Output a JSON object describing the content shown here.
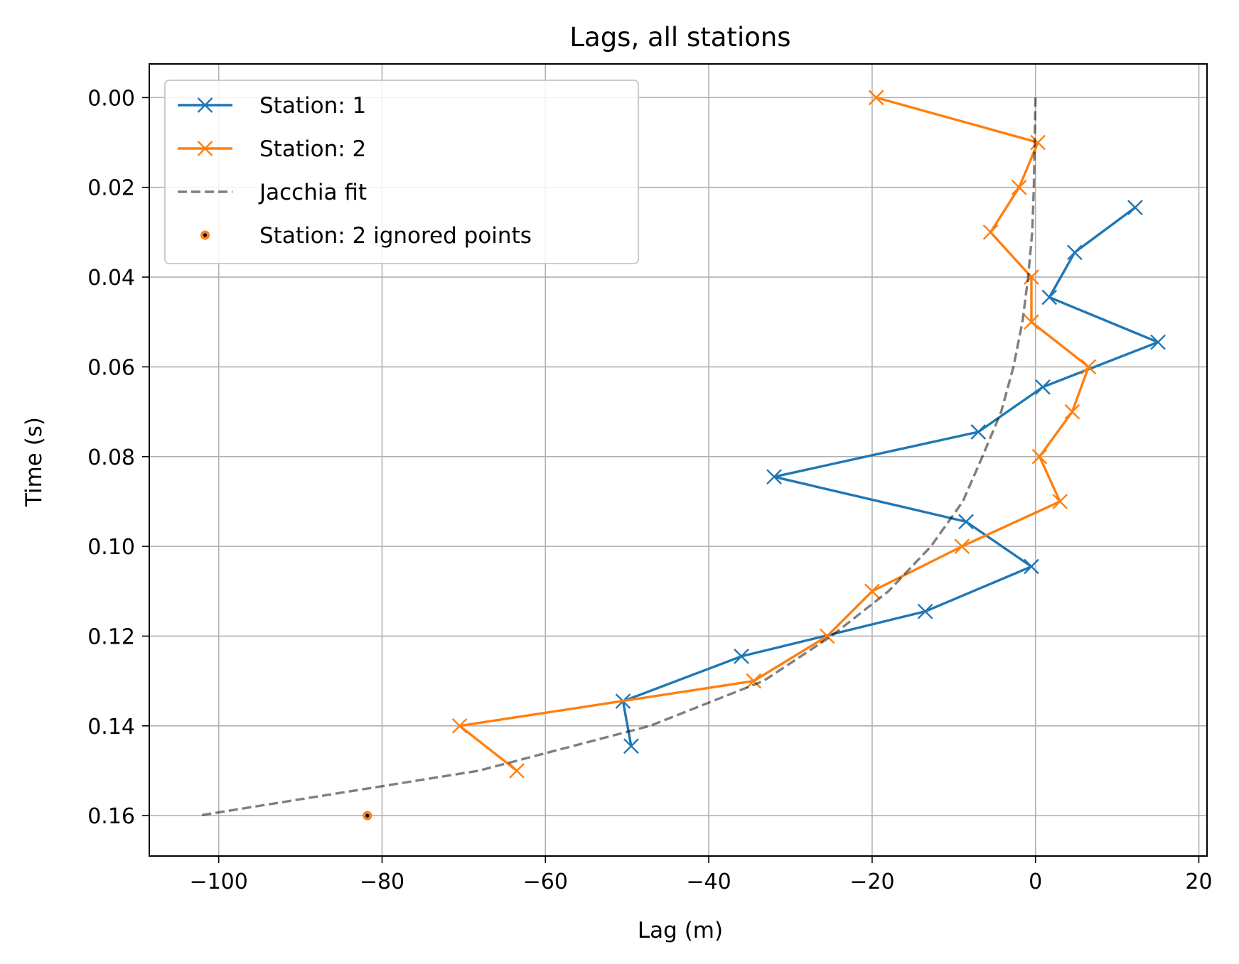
{
  "chart_data": {
    "type": "line",
    "title": "Lags, all stations",
    "xlabel": "Lag (m)",
    "ylabel": "Time (s)",
    "xlim": [
      -108.5,
      21
    ],
    "ylim": [
      0.169,
      -0.0075
    ],
    "y_inverted": true,
    "grid": true,
    "legend_position": "upper-left",
    "x_ticks": [
      -100,
      -80,
      -60,
      -40,
      -20,
      0,
      20
    ],
    "x_tick_labels": [
      "−100",
      "−80",
      "−60",
      "−40",
      "−20",
      "0",
      "20"
    ],
    "y_ticks": [
      0.0,
      0.02,
      0.04,
      0.06,
      0.08,
      0.1,
      0.12,
      0.14,
      0.16
    ],
    "y_tick_labels": [
      "0.00",
      "0.02",
      "0.04",
      "0.06",
      "0.08",
      "0.10",
      "0.12",
      "0.14",
      "0.16"
    ],
    "series": [
      {
        "name": "Station: 1",
        "style": "line-x",
        "color": "#1f77b4",
        "points": [
          [
            12.2,
            0.0245
          ],
          [
            4.8,
            0.0345
          ],
          [
            1.7,
            0.0445
          ],
          [
            15.0,
            0.0545
          ],
          [
            0.9,
            0.0645
          ],
          [
            -7.0,
            0.0745
          ],
          [
            -32.0,
            0.0845
          ],
          [
            -8.5,
            0.0945
          ],
          [
            -0.5,
            0.1045
          ],
          [
            -13.5,
            0.1145
          ],
          [
            -36.0,
            0.1245
          ],
          [
            -50.5,
            0.1345
          ],
          [
            -49.5,
            0.1445
          ]
        ]
      },
      {
        "name": "Station: 2",
        "style": "line-x",
        "color": "#ff7f0e",
        "points": [
          [
            -19.5,
            0.0
          ],
          [
            0.3,
            0.01
          ],
          [
            -2.0,
            0.02
          ],
          [
            -5.5,
            0.03
          ],
          [
            -0.5,
            0.04
          ],
          [
            -0.5,
            0.05
          ],
          [
            6.5,
            0.06
          ],
          [
            4.5,
            0.07
          ],
          [
            0.5,
            0.08
          ],
          [
            3.0,
            0.09
          ],
          [
            -9.0,
            0.1
          ],
          [
            -20.0,
            0.11
          ],
          [
            -25.5,
            0.12
          ],
          [
            -34.5,
            0.13
          ],
          [
            -70.5,
            0.14
          ],
          [
            -63.5,
            0.15
          ]
        ]
      },
      {
        "name": "Jacchia fit",
        "style": "dashed",
        "color": "#000000",
        "points": [
          [
            0.0,
            0.0
          ],
          [
            -0.1,
            0.01
          ],
          [
            -0.2,
            0.02
          ],
          [
            -0.4,
            0.03
          ],
          [
            -0.9,
            0.04
          ],
          [
            -1.6,
            0.05
          ],
          [
            -2.7,
            0.06
          ],
          [
            -4.2,
            0.07
          ],
          [
            -6.5,
            0.08
          ],
          [
            -8.9,
            0.09
          ],
          [
            -12.8,
            0.1
          ],
          [
            -18.0,
            0.11
          ],
          [
            -25.0,
            0.12
          ],
          [
            -33.3,
            0.13
          ],
          [
            -47.2,
            0.14
          ],
          [
            -68.2,
            0.15
          ],
          [
            -102.5,
            0.16
          ]
        ]
      },
      {
        "name": "Station: 2 ignored points",
        "style": "dot",
        "color": "#ff7f0e",
        "points": [
          [
            -81.8,
            0.16
          ]
        ]
      }
    ]
  }
}
